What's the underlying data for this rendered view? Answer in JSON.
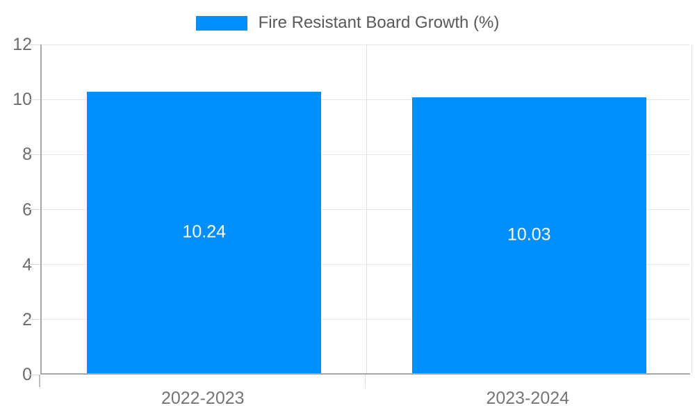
{
  "chart_data": {
    "type": "bar",
    "title": "Fire Resistant Board Growth (%)",
    "categories": [
      "2022-2023",
      "2023-2024"
    ],
    "values": [
      10.24,
      10.03
    ],
    "value_labels": [
      "10.24",
      "10.03"
    ],
    "xlabel": "",
    "ylabel": "",
    "ylim": [
      0,
      12
    ],
    "yticks": [
      0,
      2,
      4,
      6,
      8,
      10,
      12
    ],
    "grid": true,
    "legend_position": "top",
    "colors": {
      "bar": "#008FFB",
      "value_label": "#FFFFFF",
      "grid": "#E6E6E6",
      "separator": "#E0E0E0",
      "axis": "#A6A6A6",
      "tick": "#D9D9D9",
      "axis_label": "#6B6B6B",
      "x_label": "#757575",
      "legend_text": "#595959",
      "background": "#FFFFFF"
    }
  }
}
